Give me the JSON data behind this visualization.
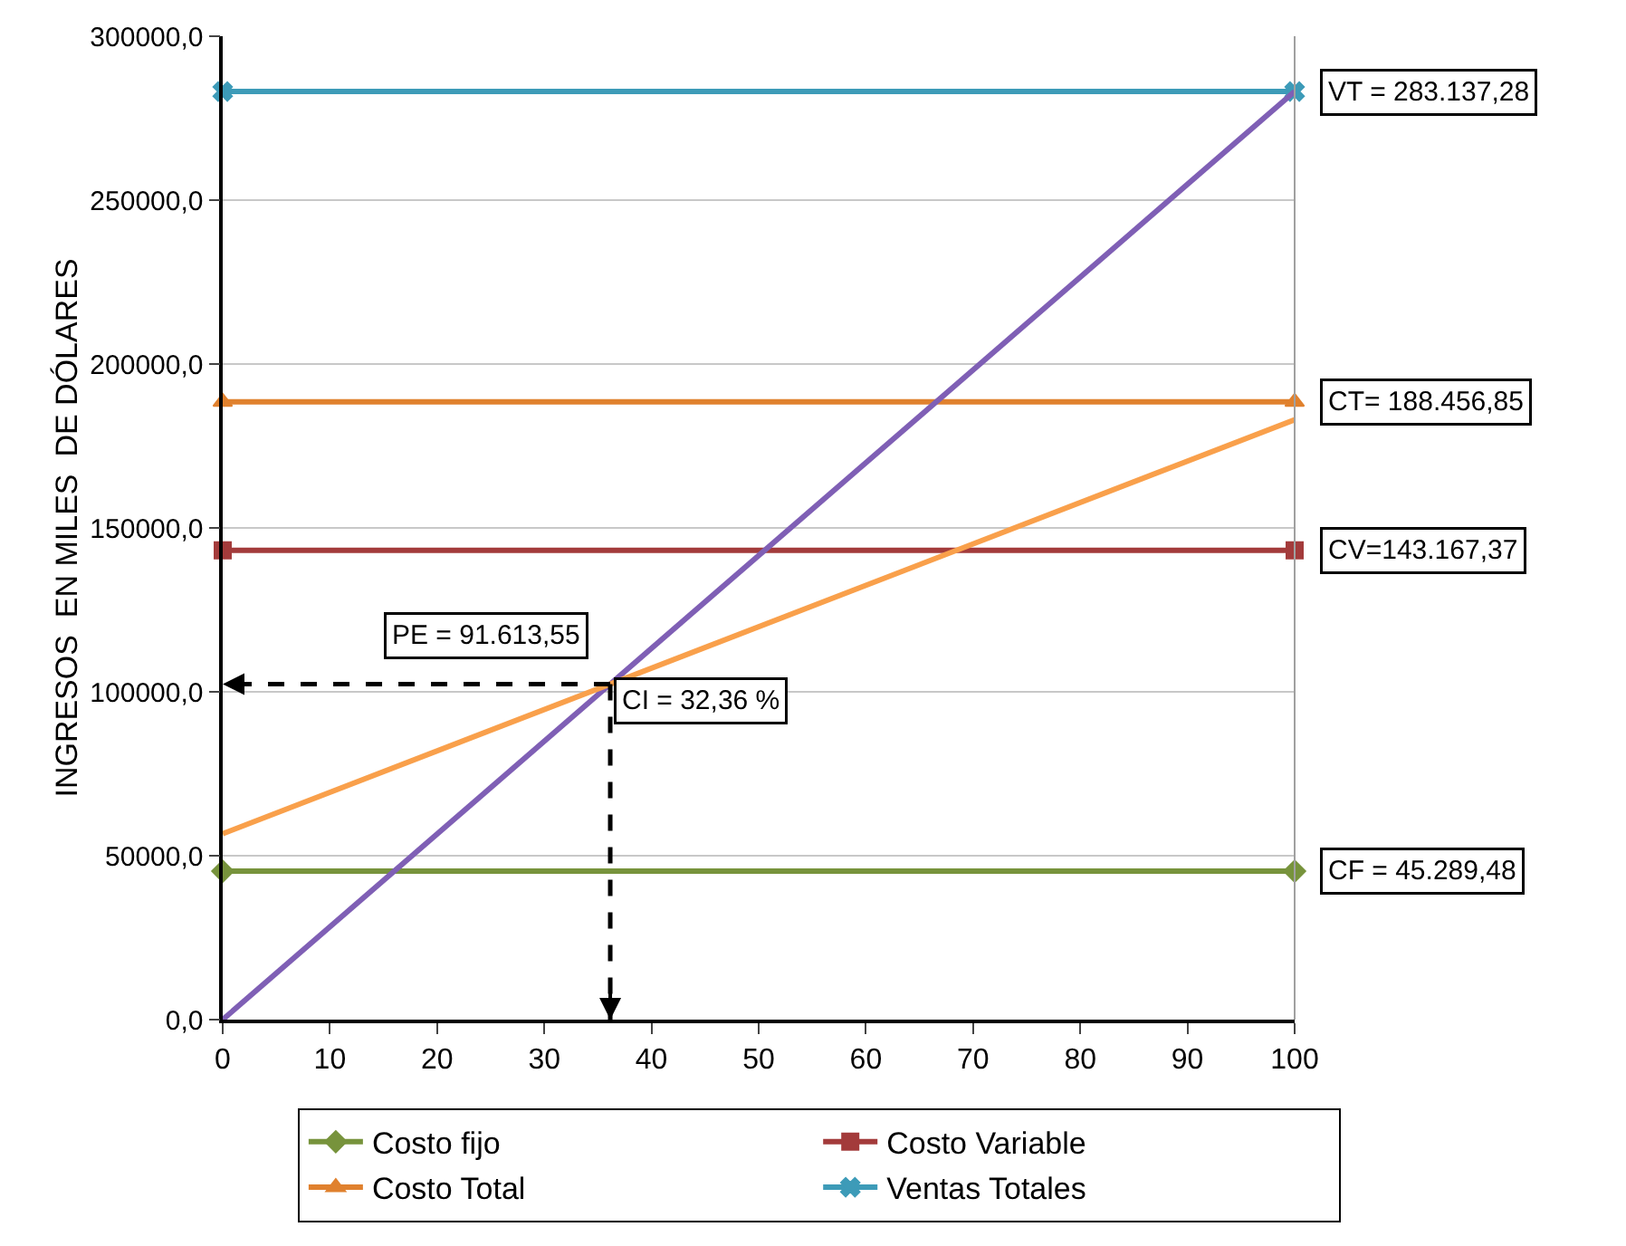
{
  "chart_data": {
    "type": "line",
    "ylabel": "INGRESOS  EN MILES  DE DÓLARES",
    "xlim": [
      0,
      100
    ],
    "xticks": [
      0,
      10,
      20,
      30,
      40,
      50,
      60,
      70,
      80,
      90,
      100
    ],
    "ylim": [
      0,
      300000
    ],
    "yticks": [
      {
        "value": 0,
        "label": "0,0"
      },
      {
        "value": 50000,
        "label": "50000,0"
      },
      {
        "value": 100000,
        "label": "100000,0"
      },
      {
        "value": 150000,
        "label": "150000,0"
      },
      {
        "value": 200000,
        "label": "200000,0"
      },
      {
        "value": 250000,
        "label": "250000,0"
      },
      {
        "value": 300000,
        "label": "300000,0"
      }
    ],
    "x": [
      0,
      100
    ],
    "series": [
      {
        "name": "Costo fijo",
        "color": "#77933c",
        "values": [
          45289.48,
          45289.48
        ],
        "marker": "diamond"
      },
      {
        "name": "Costo Variable",
        "color": "#a33b3b",
        "values": [
          143167.37,
          143167.37
        ],
        "marker": "square"
      },
      {
        "name": "Costo Total",
        "color": "#e0812e",
        "values": [
          188456.85,
          188456.85
        ],
        "marker": "triangle"
      },
      {
        "name": "Ventas Totales",
        "color": "#3d9bb8",
        "values": [
          283137.28,
          283137.28
        ],
        "marker": "cross"
      },
      {
        "color": "#7f5fb5",
        "values": [
          0,
          283137.28
        ],
        "marker": "none"
      },
      {
        "color": "#f9a04b",
        "values": [
          56700,
          183000
        ],
        "marker": "none"
      }
    ],
    "annotations": [
      "PE = 91.613,55",
      "CI = 32,36 %",
      "VT = 283.137,28",
      "CT= 188.456,85",
      "CV=143.167,37",
      "CF = 45.289,48"
    ],
    "grid": "y",
    "legend": "bottom"
  }
}
